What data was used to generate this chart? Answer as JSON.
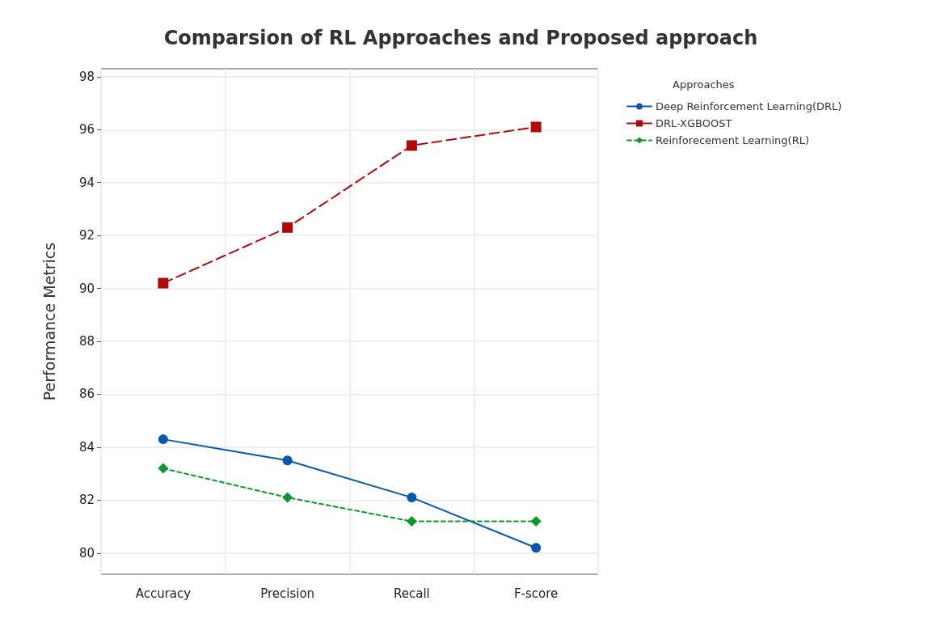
{
  "chart_data": {
    "type": "line",
    "title": "Comparsion of RL Approaches and Proposed approach",
    "ylabel": "Performance Metrics",
    "legend_title": "Approaches",
    "legend": "top right",
    "grid": true,
    "categories": [
      "Accuracy",
      "Precision",
      "Recall",
      "F-score"
    ],
    "ylim": [
      79.2,
      98.3
    ],
    "yticks": [
      80,
      82,
      84,
      86,
      88,
      90,
      92,
      94,
      96,
      98
    ],
    "series": [
      {
        "name": "Deep Reinforcement Learning(DRL)",
        "color": "#0857b0",
        "values": [
          84.3,
          83.5,
          82.1,
          80.2
        ],
        "marker": "circle",
        "line_style": "solid"
      },
      {
        "name": "DRL-XGBOOST",
        "color": "#b00a0a",
        "values": [
          90.2,
          92.3,
          95.4,
          96.1
        ],
        "marker": "square",
        "line_style": "dashed"
      },
      {
        "name": "Reinforecement Learning(RL)",
        "color": "#0a9a2a",
        "values": [
          83.2,
          82.1,
          81.2,
          81.2
        ],
        "marker": "diamond",
        "line_style": "dotted"
      }
    ]
  }
}
